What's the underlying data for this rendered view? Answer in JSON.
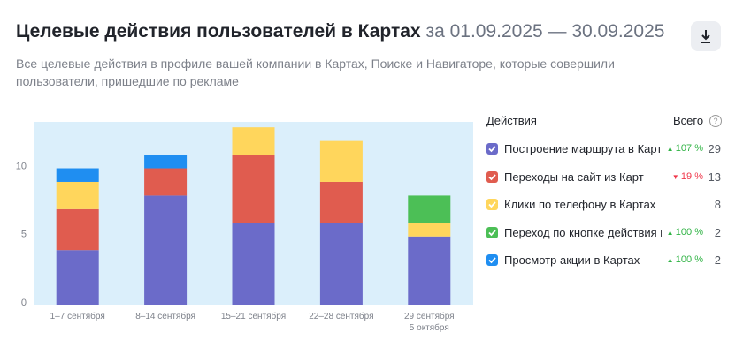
{
  "header": {
    "title": "Целевые действия пользователей в Картах",
    "period": "за 01.09.2025 — 30.09.2025",
    "subtitle": "Все целевые действия в профиле вашей компании в Картах, Поиске и Навигаторе, которые совершили пользователи, пришедшие по рекламе"
  },
  "chart_data": {
    "type": "bar",
    "stacked": true,
    "grid": false,
    "categories": [
      "1–7 сентября",
      "8–14 сентября",
      "15–21 сентября",
      "22–28 сентября",
      "29 сентября\n5 октября"
    ],
    "ylim": [
      0,
      13.4
    ],
    "yticks": [
      0,
      5,
      10
    ],
    "legend_header": {
      "name": "Действия",
      "total": "Всего"
    },
    "series": [
      {
        "name": "Построение маршрута в Карта",
        "color": "#6b6bc9",
        "values": [
          4,
          8,
          6,
          6,
          5
        ],
        "change": "107 %",
        "trend": "up",
        "total": 29
      },
      {
        "name": "Переходы на сайт из Карт",
        "color": "#e05c4f",
        "values": [
          3,
          2,
          5,
          3,
          0
        ],
        "change": "19 %",
        "trend": "down",
        "total": 13
      },
      {
        "name": "Клики по телефону в Картах",
        "color": "#ffd65c",
        "values": [
          2,
          0,
          2,
          3,
          1
        ],
        "total": 8
      },
      {
        "name": "Переход по кнопке действия из",
        "color": "#4cbf56",
        "values": [
          0,
          0,
          0,
          0,
          2
        ],
        "change": "100 %",
        "trend": "up",
        "total": 2
      },
      {
        "name": "Просмотр акции в Картах",
        "color": "#1f8ef1",
        "values": [
          1,
          1,
          0,
          0,
          0
        ],
        "change": "100 %",
        "trend": "up",
        "total": 2
      }
    ]
  }
}
